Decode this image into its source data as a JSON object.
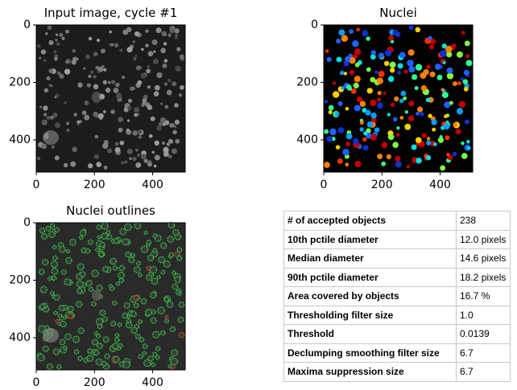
{
  "panels": [
    {
      "title": "Input image, cycle #1",
      "xlim": [
        0,
        512
      ],
      "ylim": [
        0,
        512
      ],
      "xticks": [
        0,
        200,
        400
      ],
      "yticks": [
        0,
        200,
        400
      ]
    },
    {
      "title": "Nuclei",
      "xlim": [
        0,
        512
      ],
      "ylim": [
        0,
        512
      ],
      "xticks": [
        0,
        200,
        400
      ],
      "yticks": [
        0,
        200,
        400
      ]
    },
    {
      "title": "Nuclei outlines",
      "xlim": [
        0,
        512
      ],
      "ylim": [
        0,
        512
      ],
      "xticks": [
        0,
        200,
        400
      ],
      "yticks": [
        0,
        200,
        400
      ]
    }
  ],
  "table": {
    "rows": [
      [
        "# of accepted objects",
        "238"
      ],
      [
        "10th pctile diameter",
        "12.0 pixels"
      ],
      [
        "Median diameter",
        "14.6 pixels"
      ],
      [
        "90th pctile diameter",
        "18.2 pixels"
      ],
      [
        "Area covered by objects",
        "16.7 %"
      ],
      [
        "Thresholding filter size",
        "1.0"
      ],
      [
        "Threshold",
        "0.0139"
      ],
      [
        "Declumping smoothing filter size",
        "6.7"
      ],
      [
        "Maxima suppression size",
        "6.7"
      ]
    ]
  }
}
